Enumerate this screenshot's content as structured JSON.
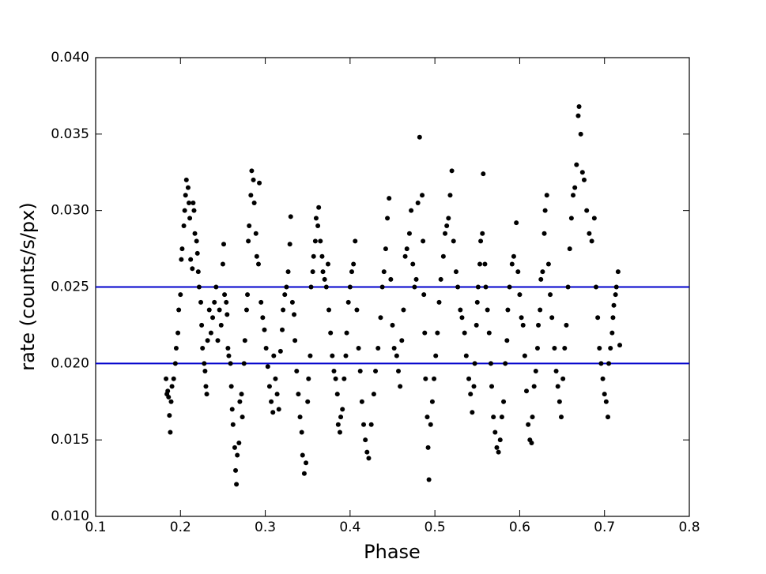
{
  "chart_data": {
    "type": "scatter",
    "xlabel": "Phase",
    "ylabel": "rate (counts/s/px)",
    "xlim": [
      0.1,
      0.8
    ],
    "ylim": [
      0.01,
      0.04
    ],
    "xticks": [
      0.1,
      0.2,
      0.3,
      0.4,
      0.5,
      0.6,
      0.7,
      0.8
    ],
    "yticks": [
      {
        "value": 0.01,
        "label": "0.010"
      },
      0.015,
      {
        "value": 0.02,
        "label": "0.020"
      },
      0.025,
      {
        "value": 0.03,
        "label": "0.030"
      },
      0.035,
      {
        "value": 0.04,
        "label": "0.040"
      }
    ],
    "hlines": [
      0.025,
      0.02
    ],
    "hline_color": "#0000cc",
    "series": [
      {
        "color": "#000000",
        "x": [
          0.183,
          0.184,
          0.185,
          0.186,
          0.187,
          0.188,
          0.189,
          0.19,
          0.192,
          0.194,
          0.195,
          0.197,
          0.198,
          0.2,
          0.201,
          0.202,
          0.204,
          0.205,
          0.206,
          0.207,
          0.209,
          0.21,
          0.211,
          0.212,
          0.214,
          0.215,
          0.216,
          0.217,
          0.219,
          0.22,
          0.221,
          0.222,
          0.224,
          0.225,
          0.226,
          0.228,
          0.229,
          0.23,
          0.231,
          0.232,
          0.234,
          0.236,
          0.238,
          0.24,
          0.242,
          0.244,
          0.246,
          0.248,
          0.25,
          0.251,
          0.252,
          0.254,
          0.255,
          0.256,
          0.257,
          0.259,
          0.26,
          0.261,
          0.262,
          0.264,
          0.265,
          0.266,
          0.267,
          0.269,
          0.27,
          0.272,
          0.273,
          0.275,
          0.276,
          0.278,
          0.279,
          0.28,
          0.281,
          0.283,
          0.284,
          0.286,
          0.287,
          0.289,
          0.29,
          0.292,
          0.293,
          0.295,
          0.297,
          0.299,
          0.301,
          0.303,
          0.305,
          0.307,
          0.309,
          0.31,
          0.312,
          0.314,
          0.316,
          0.318,
          0.32,
          0.321,
          0.323,
          0.325,
          0.327,
          0.329,
          0.33,
          0.332,
          0.334,
          0.335,
          0.337,
          0.339,
          0.341,
          0.343,
          0.344,
          0.346,
          0.348,
          0.35,
          0.351,
          0.353,
          0.354,
          0.356,
          0.357,
          0.359,
          0.36,
          0.362,
          0.363,
          0.365,
          0.367,
          0.368,
          0.37,
          0.372,
          0.374,
          0.375,
          0.377,
          0.379,
          0.381,
          0.383,
          0.385,
          0.386,
          0.388,
          0.389,
          0.391,
          0.393,
          0.395,
          0.396,
          0.398,
          0.4,
          0.402,
          0.404,
          0.406,
          0.408,
          0.41,
          0.412,
          0.414,
          0.416,
          0.418,
          0.42,
          0.422,
          0.425,
          0.428,
          0.43,
          0.433,
          0.436,
          0.438,
          0.44,
          0.442,
          0.444,
          0.446,
          0.448,
          0.45,
          0.452,
          0.455,
          0.457,
          0.459,
          0.461,
          0.463,
          0.465,
          0.467,
          0.47,
          0.472,
          0.474,
          0.476,
          0.478,
          0.48,
          0.482,
          0.485,
          0.486,
          0.487,
          0.488,
          0.489,
          0.491,
          0.492,
          0.493,
          0.495,
          0.497,
          0.499,
          0.501,
          0.503,
          0.505,
          0.507,
          0.51,
          0.512,
          0.514,
          0.516,
          0.518,
          0.52,
          0.522,
          0.525,
          0.527,
          0.53,
          0.532,
          0.535,
          0.537,
          0.54,
          0.542,
          0.544,
          0.546,
          0.547,
          0.549,
          0.55,
          0.551,
          0.553,
          0.554,
          0.556,
          0.557,
          0.559,
          0.56,
          0.562,
          0.564,
          0.566,
          0.567,
          0.569,
          0.571,
          0.573,
          0.575,
          0.577,
          0.579,
          0.581,
          0.583,
          0.585,
          0.586,
          0.588,
          0.591,
          0.593,
          0.596,
          0.598,
          0.6,
          0.602,
          0.604,
          0.606,
          0.608,
          0.61,
          0.612,
          0.614,
          0.615,
          0.617,
          0.619,
          0.621,
          0.622,
          0.624,
          0.625,
          0.627,
          0.629,
          0.63,
          0.632,
          0.634,
          0.636,
          0.638,
          0.641,
          0.643,
          0.645,
          0.647,
          0.649,
          0.651,
          0.653,
          0.655,
          0.657,
          0.659,
          0.661,
          0.663,
          0.665,
          0.667,
          0.669,
          0.67,
          0.672,
          0.674,
          0.676,
          0.679,
          0.682,
          0.685,
          0.688,
          0.69,
          0.692,
          0.694,
          0.696,
          0.698,
          0.7,
          0.702,
          0.704,
          0.705,
          0.707,
          0.709,
          0.71,
          0.711,
          0.713,
          0.714,
          0.716,
          0.718
        ],
        "values": [
          0.019,
          0.018,
          0.0182,
          0.0178,
          0.0166,
          0.0155,
          0.0175,
          0.0185,
          0.019,
          0.02,
          0.021,
          0.022,
          0.0235,
          0.0245,
          0.0268,
          0.0275,
          0.029,
          0.03,
          0.031,
          0.032,
          0.0315,
          0.0305,
          0.0295,
          0.0268,
          0.0262,
          0.0305,
          0.03,
          0.0285,
          0.028,
          0.0272,
          0.026,
          0.025,
          0.024,
          0.0225,
          0.021,
          0.02,
          0.0195,
          0.0185,
          0.018,
          0.0215,
          0.0235,
          0.022,
          0.023,
          0.024,
          0.025,
          0.0215,
          0.0235,
          0.0225,
          0.0265,
          0.0278,
          0.0245,
          0.024,
          0.0232,
          0.021,
          0.0205,
          0.02,
          0.0185,
          0.017,
          0.016,
          0.0145,
          0.013,
          0.0121,
          0.014,
          0.0148,
          0.0175,
          0.018,
          0.0165,
          0.02,
          0.0215,
          0.0235,
          0.0245,
          0.028,
          0.029,
          0.031,
          0.0326,
          0.032,
          0.0305,
          0.0285,
          0.027,
          0.0265,
          0.0318,
          0.024,
          0.023,
          0.0222,
          0.021,
          0.0198,
          0.0185,
          0.0175,
          0.0168,
          0.0205,
          0.019,
          0.018,
          0.017,
          0.0208,
          0.0222,
          0.0235,
          0.0245,
          0.025,
          0.026,
          0.0278,
          0.0296,
          0.024,
          0.0232,
          0.0215,
          0.0195,
          0.018,
          0.0165,
          0.0155,
          0.014,
          0.0128,
          0.0135,
          0.0175,
          0.019,
          0.0205,
          0.025,
          0.026,
          0.027,
          0.028,
          0.0295,
          0.029,
          0.0302,
          0.028,
          0.027,
          0.026,
          0.0255,
          0.025,
          0.0265,
          0.0235,
          0.022,
          0.0205,
          0.0195,
          0.019,
          0.018,
          0.016,
          0.0155,
          0.0165,
          0.017,
          0.019,
          0.0205,
          0.022,
          0.024,
          0.025,
          0.026,
          0.0265,
          0.028,
          0.0235,
          0.021,
          0.0195,
          0.0175,
          0.016,
          0.015,
          0.0142,
          0.0138,
          0.016,
          0.018,
          0.0195,
          0.021,
          0.023,
          0.025,
          0.026,
          0.0275,
          0.0295,
          0.0308,
          0.0255,
          0.0225,
          0.021,
          0.0205,
          0.0195,
          0.0185,
          0.0215,
          0.0235,
          0.027,
          0.0275,
          0.0285,
          0.03,
          0.0265,
          0.025,
          0.0255,
          0.0305,
          0.0348,
          0.031,
          0.028,
          0.0245,
          0.022,
          0.019,
          0.0165,
          0.0145,
          0.0124,
          0.016,
          0.0175,
          0.019,
          0.0205,
          0.022,
          0.024,
          0.0255,
          0.027,
          0.0285,
          0.029,
          0.0295,
          0.031,
          0.0326,
          0.028,
          0.026,
          0.025,
          0.0235,
          0.023,
          0.022,
          0.0205,
          0.019,
          0.018,
          0.0168,
          0.0185,
          0.02,
          0.0225,
          0.024,
          0.025,
          0.0265,
          0.028,
          0.0285,
          0.0324,
          0.0265,
          0.025,
          0.0235,
          0.022,
          0.02,
          0.0185,
          0.0165,
          0.0155,
          0.0145,
          0.0142,
          0.015,
          0.0165,
          0.0175,
          0.02,
          0.0215,
          0.0235,
          0.025,
          0.0265,
          0.027,
          0.0292,
          0.026,
          0.0245,
          0.023,
          0.0225,
          0.0205,
          0.0182,
          0.016,
          0.015,
          0.0148,
          0.0165,
          0.0185,
          0.0195,
          0.021,
          0.0225,
          0.0235,
          0.0255,
          0.026,
          0.0285,
          0.03,
          0.031,
          0.0265,
          0.0245,
          0.023,
          0.021,
          0.0195,
          0.0185,
          0.0175,
          0.0165,
          0.019,
          0.021,
          0.0225,
          0.025,
          0.0275,
          0.0295,
          0.031,
          0.0315,
          0.033,
          0.0362,
          0.0368,
          0.035,
          0.0325,
          0.032,
          0.03,
          0.0285,
          0.028,
          0.0295,
          0.025,
          0.023,
          0.021,
          0.02,
          0.019,
          0.018,
          0.0175,
          0.0165,
          0.02,
          0.021,
          0.022,
          0.023,
          0.0238,
          0.0245,
          0.025,
          0.026,
          0.0212
        ]
      }
    ]
  }
}
